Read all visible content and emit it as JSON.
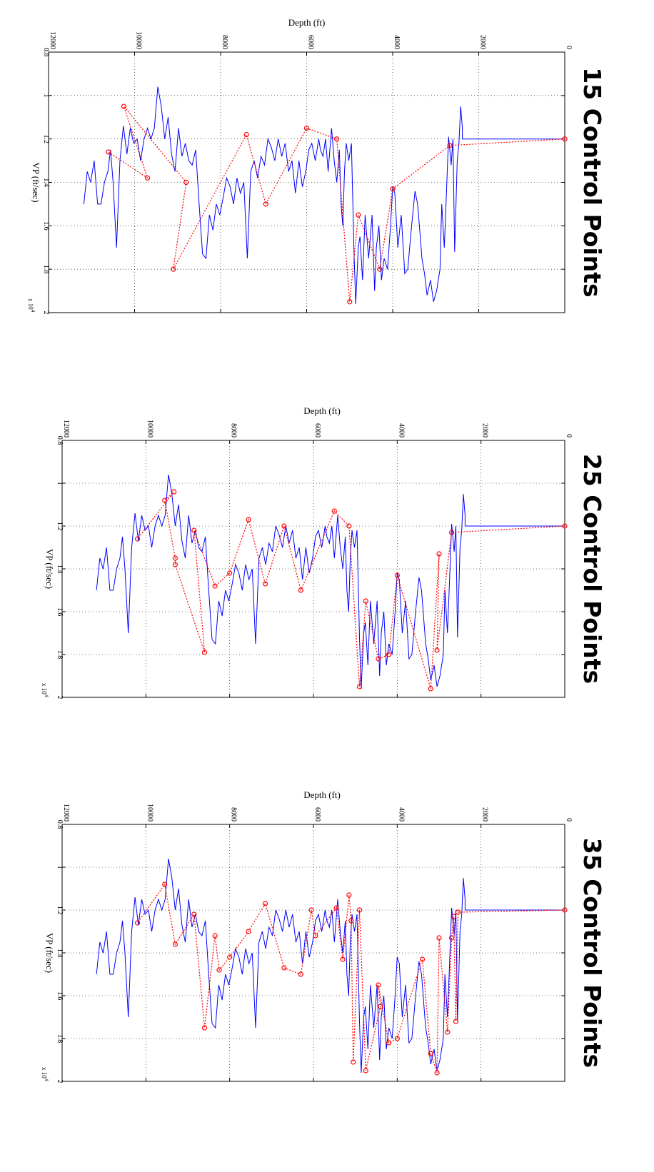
{
  "chart_data": [
    {
      "type": "line",
      "title": "15 Control Points",
      "xlabel": "Depth (ft)",
      "ylabel": "VP (ft/sec)",
      "y_multiplier": "x 10^4",
      "xlim": [
        0,
        12000
      ],
      "ylim": [
        0.8,
        2.0
      ],
      "x_ticks": [
        "0",
        "2000",
        "4000",
        "6000",
        "8000",
        "10000",
        "12000"
      ],
      "y_ticks": [
        "0.8",
        "1",
        "1.2",
        "1.4",
        "1.6",
        "1.8",
        "2"
      ],
      "grid": true,
      "series": [
        {
          "style": "solid",
          "color": "#0000ff",
          "x": [
            0,
            2380,
            2380,
            2420,
            2460,
            2500,
            2560,
            2600,
            2640,
            2700,
            2760,
            2800,
            2860,
            2900,
            2980,
            3050,
            3120,
            3200,
            3260,
            3320,
            3380,
            3420,
            3480,
            3560,
            3650,
            3720,
            3800,
            3880,
            3950,
            4000,
            4050,
            4120,
            4200,
            4260,
            4320,
            4380,
            4420,
            4480,
            4560,
            4640,
            4700,
            4760,
            4800,
            4860,
            4900,
            4960,
            5020,
            5080,
            5120,
            5160,
            5200,
            5240,
            5300,
            5360,
            5420,
            5500,
            5560,
            5620,
            5680,
            5720,
            5800,
            5880,
            5950,
            6020,
            6100,
            6180,
            6260,
            6340,
            6420,
            6500,
            6580,
            6660,
            6740,
            6820,
            6900,
            6980,
            7060,
            7140,
            7220,
            7300,
            7380,
            7460,
            7540,
            7620,
            7700,
            7780,
            7860,
            7940,
            8020,
            8100,
            8180,
            8260,
            8340,
            8420,
            8500,
            8580,
            8660,
            8740,
            8820,
            8900,
            8980,
            9060,
            9140,
            9220,
            9300,
            9380,
            9460,
            9540,
            9620,
            9700,
            9780,
            9860,
            9940,
            10020,
            10100,
            10180,
            10260,
            10340,
            10420,
            10500,
            10560,
            10620,
            10700,
            10780,
            10860,
            10940,
            11020,
            11100,
            11180
          ],
          "y": [
            1.2,
            1.2,
            1.15,
            1.05,
            1.22,
            1.3,
            1.72,
            1.2,
            1.32,
            1.19,
            1.5,
            1.7,
            1.5,
            1.8,
            1.9,
            1.95,
            1.85,
            1.92,
            1.82,
            1.75,
            1.6,
            1.5,
            1.44,
            1.6,
            1.8,
            1.82,
            1.55,
            1.7,
            1.45,
            1.42,
            1.6,
            1.8,
            1.75,
            1.85,
            1.6,
            1.7,
            1.9,
            1.55,
            1.75,
            1.55,
            1.85,
            1.65,
            1.7,
            1.96,
            1.72,
            1.22,
            1.3,
            1.22,
            1.35,
            1.6,
            1.5,
            1.25,
            1.4,
            1.3,
            1.15,
            1.35,
            1.2,
            1.28,
            1.25,
            1.2,
            1.3,
            1.22,
            1.25,
            1.35,
            1.42,
            1.3,
            1.45,
            1.3,
            1.35,
            1.22,
            1.28,
            1.2,
            1.3,
            1.24,
            1.2,
            1.32,
            1.28,
            1.38,
            1.3,
            1.35,
            1.75,
            1.4,
            1.45,
            1.38,
            1.5,
            1.42,
            1.38,
            1.47,
            1.55,
            1.5,
            1.62,
            1.55,
            1.75,
            1.73,
            1.5,
            1.25,
            1.32,
            1.3,
            1.22,
            1.28,
            1.15,
            1.35,
            1.27,
            1.1,
            1.2,
            1.05,
            0.96,
            1.15,
            1.2,
            1.15,
            1.2,
            1.3,
            1.2,
            1.22,
            1.15,
            1.27,
            1.14,
            1.3,
            1.7,
            1.4,
            1.25,
            1.35,
            1.4,
            1.5,
            1.5,
            1.3,
            1.4,
            1.35,
            1.5
          ]
        },
        {
          "style": "dotted",
          "color": "#ff0000",
          "markers": "circle",
          "x": [
            0,
            2670,
            4000,
            4300,
            4800,
            5000,
            5300,
            6000,
            6950,
            7400,
            9100,
            8800,
            10250,
            9700,
            10610
          ],
          "y": [
            1.2,
            1.23,
            1.43,
            1.8,
            1.55,
            1.95,
            1.2,
            1.15,
            1.5,
            1.18,
            1.8,
            1.4,
            1.05,
            1.38,
            1.26
          ]
        }
      ]
    },
    {
      "type": "line",
      "title": "25 Control Points",
      "xlabel": "Depth (ft)",
      "ylabel": "VP (ft/sec)",
      "y_multiplier": "x 10^4",
      "xlim": [
        0,
        12000
      ],
      "ylim": [
        0.8,
        2.0
      ],
      "x_ticks": [
        "0",
        "2000",
        "4000",
        "6000",
        "8000",
        "10000",
        "12000"
      ],
      "y_ticks": [
        "0.8",
        "1",
        "1.2",
        "1.4",
        "1.6",
        "1.8",
        "2"
      ],
      "grid": true,
      "series": [
        {
          "style": "solid",
          "color": "#0000ff",
          "x": [
            0,
            2380,
            2380,
            2420,
            2460,
            2500,
            2560,
            2600,
            2640,
            2700,
            2760,
            2800,
            2860,
            2900,
            2980,
            3050,
            3120,
            3200,
            3260,
            3320,
            3380,
            3420,
            3480,
            3560,
            3650,
            3720,
            3800,
            3880,
            3950,
            4000,
            4050,
            4120,
            4200,
            4260,
            4320,
            4380,
            4420,
            4480,
            4560,
            4640,
            4700,
            4760,
            4800,
            4860,
            4900,
            4960,
            5020,
            5080,
            5120,
            5160,
            5200,
            5240,
            5300,
            5360,
            5420,
            5500,
            5560,
            5620,
            5680,
            5720,
            5800,
            5880,
            5950,
            6020,
            6100,
            6180,
            6260,
            6340,
            6420,
            6500,
            6580,
            6660,
            6740,
            6820,
            6900,
            6980,
            7060,
            7140,
            7220,
            7300,
            7380,
            7460,
            7540,
            7620,
            7700,
            7780,
            7860,
            7940,
            8020,
            8100,
            8180,
            8260,
            8340,
            8420,
            8500,
            8580,
            8660,
            8740,
            8820,
            8900,
            8980,
            9060,
            9140,
            9220,
            9300,
            9380,
            9460,
            9540,
            9620,
            9700,
            9780,
            9860,
            9940,
            10020,
            10100,
            10180,
            10260,
            10340,
            10420,
            10500,
            10560,
            10620,
            10700,
            10780,
            10860,
            10940,
            11020,
            11100,
            11180
          ],
          "y": [
            1.2,
            1.2,
            1.15,
            1.05,
            1.22,
            1.3,
            1.72,
            1.2,
            1.32,
            1.19,
            1.5,
            1.7,
            1.5,
            1.8,
            1.9,
            1.95,
            1.85,
            1.92,
            1.82,
            1.75,
            1.6,
            1.5,
            1.44,
            1.6,
            1.8,
            1.82,
            1.55,
            1.7,
            1.45,
            1.42,
            1.6,
            1.8,
            1.75,
            1.85,
            1.6,
            1.7,
            1.9,
            1.55,
            1.75,
            1.55,
            1.85,
            1.65,
            1.7,
            1.96,
            1.72,
            1.22,
            1.3,
            1.22,
            1.35,
            1.6,
            1.5,
            1.25,
            1.4,
            1.3,
            1.15,
            1.35,
            1.2,
            1.28,
            1.25,
            1.2,
            1.3,
            1.22,
            1.25,
            1.35,
            1.42,
            1.3,
            1.45,
            1.3,
            1.35,
            1.22,
            1.28,
            1.2,
            1.3,
            1.24,
            1.2,
            1.32,
            1.28,
            1.38,
            1.3,
            1.35,
            1.75,
            1.4,
            1.45,
            1.38,
            1.5,
            1.42,
            1.38,
            1.47,
            1.55,
            1.5,
            1.62,
            1.55,
            1.75,
            1.73,
            1.5,
            1.25,
            1.32,
            1.3,
            1.22,
            1.28,
            1.15,
            1.35,
            1.27,
            1.1,
            1.2,
            1.05,
            0.96,
            1.15,
            1.2,
            1.15,
            1.2,
            1.3,
            1.2,
            1.22,
            1.15,
            1.27,
            1.14,
            1.3,
            1.7,
            1.4,
            1.25,
            1.35,
            1.4,
            1.5,
            1.5,
            1.3,
            1.4,
            1.35,
            1.5
          ]
        },
        {
          "style": "dotted",
          "color": "#ff0000",
          "markers": "circle",
          "x": [
            0,
            2700,
            3050,
            3000,
            3200,
            4000,
            4200,
            4450,
            4750,
            4900,
            5150,
            5500,
            6300,
            6700,
            7150,
            7550,
            8000,
            8350,
            8850,
            8600,
            9300,
            9300,
            9550,
            9330,
            10200
          ],
          "y": [
            1.2,
            1.23,
            1.78,
            1.33,
            1.96,
            1.43,
            1.8,
            1.82,
            1.55,
            1.95,
            1.2,
            1.13,
            1.5,
            1.2,
            1.47,
            1.17,
            1.42,
            1.48,
            1.22,
            1.79,
            1.38,
            1.35,
            1.08,
            1.04,
            1.26
          ]
        }
      ]
    },
    {
      "type": "line",
      "title": "35 Control Points",
      "xlabel": "Depth (ft)",
      "ylabel": "VP (ft/sec)",
      "y_multiplier": "x 10^4",
      "xlim": [
        0,
        12000
      ],
      "ylim": [
        0.8,
        2.0
      ],
      "x_ticks": [
        "0",
        "2000",
        "4000",
        "6000",
        "8000",
        "10000",
        "12000"
      ],
      "y_ticks": [
        "0.8",
        "1",
        "1.2",
        "1.4",
        "1.6",
        "1.8",
        "2"
      ],
      "grid": true,
      "series": [
        {
          "style": "solid",
          "color": "#0000ff",
          "x": [
            0,
            2380,
            2380,
            2420,
            2460,
            2500,
            2560,
            2600,
            2640,
            2700,
            2760,
            2800,
            2860,
            2900,
            2980,
            3050,
            3120,
            3200,
            3260,
            3320,
            3380,
            3420,
            3480,
            3560,
            3650,
            3720,
            3800,
            3880,
            3950,
            4000,
            4050,
            4120,
            4200,
            4260,
            4320,
            4380,
            4420,
            4480,
            4560,
            4640,
            4700,
            4760,
            4800,
            4860,
            4900,
            4960,
            5020,
            5080,
            5120,
            5160,
            5200,
            5240,
            5300,
            5360,
            5420,
            5500,
            5560,
            5620,
            5680,
            5720,
            5800,
            5880,
            5950,
            6020,
            6100,
            6180,
            6260,
            6340,
            6420,
            6500,
            6580,
            6660,
            6740,
            6820,
            6900,
            6980,
            7060,
            7140,
            7220,
            7300,
            7380,
            7460,
            7540,
            7620,
            7700,
            7780,
            7860,
            7940,
            8020,
            8100,
            8180,
            8260,
            8340,
            8420,
            8500,
            8580,
            8660,
            8740,
            8820,
            8900,
            8980,
            9060,
            9140,
            9220,
            9300,
            9380,
            9460,
            9540,
            9620,
            9700,
            9780,
            9860,
            9940,
            10020,
            10100,
            10180,
            10260,
            10340,
            10420,
            10500,
            10560,
            10620,
            10700,
            10780,
            10860,
            10940,
            11020,
            11100,
            11180
          ],
          "y": [
            1.2,
            1.2,
            1.15,
            1.05,
            1.22,
            1.3,
            1.72,
            1.2,
            1.32,
            1.19,
            1.5,
            1.7,
            1.5,
            1.8,
            1.9,
            1.95,
            1.85,
            1.92,
            1.82,
            1.75,
            1.6,
            1.5,
            1.44,
            1.6,
            1.8,
            1.82,
            1.55,
            1.7,
            1.45,
            1.42,
            1.6,
            1.8,
            1.75,
            1.85,
            1.6,
            1.7,
            1.9,
            1.55,
            1.75,
            1.55,
            1.85,
            1.65,
            1.7,
            1.96,
            1.72,
            1.22,
            1.3,
            1.22,
            1.35,
            1.6,
            1.5,
            1.25,
            1.4,
            1.3,
            1.15,
            1.35,
            1.2,
            1.28,
            1.25,
            1.2,
            1.3,
            1.22,
            1.25,
            1.35,
            1.42,
            1.3,
            1.45,
            1.3,
            1.35,
            1.22,
            1.28,
            1.2,
            1.3,
            1.24,
            1.2,
            1.32,
            1.28,
            1.38,
            1.3,
            1.35,
            1.75,
            1.4,
            1.45,
            1.38,
            1.5,
            1.42,
            1.38,
            1.47,
            1.55,
            1.5,
            1.62,
            1.55,
            1.75,
            1.73,
            1.5,
            1.25,
            1.32,
            1.3,
            1.22,
            1.28,
            1.15,
            1.35,
            1.27,
            1.1,
            1.2,
            1.05,
            0.96,
            1.15,
            1.2,
            1.15,
            1.2,
            1.3,
            1.2,
            1.22,
            1.15,
            1.27,
            1.14,
            1.3,
            1.7,
            1.4,
            1.25,
            1.35,
            1.4,
            1.5,
            1.5,
            1.3,
            1.4,
            1.35,
            1.5
          ]
        },
        {
          "style": "dotted",
          "color": "#ff0000",
          "markers": "circle",
          "x": [
            0,
            2550,
            2600,
            2650,
            2700,
            2800,
            3000,
            3050,
            3200,
            3400,
            4000,
            4200,
            4450,
            4400,
            4750,
            4900,
            5050,
            5100,
            5150,
            5300,
            5450,
            5950,
            6050,
            6300,
            6700,
            7150,
            7550,
            8000,
            8250,
            8350,
            8600,
            8850,
            9300,
            9550,
            10200
          ],
          "y": [
            1.2,
            1.21,
            1.72,
            1.23,
            1.33,
            1.77,
            1.33,
            1.96,
            1.87,
            1.43,
            1.8,
            1.82,
            1.55,
            1.65,
            1.95,
            1.2,
            1.91,
            1.25,
            1.13,
            1.43,
            1.19,
            1.32,
            1.2,
            1.5,
            1.47,
            1.17,
            1.3,
            1.42,
            1.48,
            1.32,
            1.75,
            1.22,
            1.36,
            1.08,
            1.26
          ]
        }
      ]
    }
  ]
}
